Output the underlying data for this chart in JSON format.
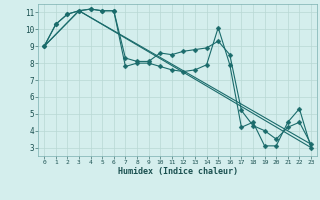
{
  "xlabel": "Humidex (Indice chaleur)",
  "bg_color": "#d4eeed",
  "grid_color": "#b8d8d4",
  "line_color": "#1a6b6b",
  "xlim": [
    -0.5,
    23.5
  ],
  "ylim": [
    2.5,
    11.5
  ],
  "yticks": [
    3,
    4,
    5,
    6,
    7,
    8,
    9,
    10,
    11
  ],
  "series1_x": [
    0,
    1,
    2,
    3,
    4,
    5,
    6,
    7,
    8,
    9,
    10,
    11,
    12,
    13,
    14,
    15,
    16,
    17,
    18,
    19,
    20,
    21,
    22,
    23
  ],
  "series1_y": [
    9.0,
    10.3,
    10.9,
    11.1,
    11.2,
    11.1,
    11.1,
    7.8,
    8.0,
    8.0,
    7.8,
    7.6,
    7.5,
    7.6,
    7.9,
    10.1,
    7.9,
    4.2,
    4.5,
    3.1,
    3.1,
    4.5,
    5.3,
    3.0
  ],
  "series2_x": [
    0,
    1,
    2,
    3,
    4,
    5,
    6,
    7,
    8,
    9,
    10,
    11,
    12,
    13,
    14,
    15,
    16,
    17,
    18,
    19,
    20,
    21,
    22,
    23
  ],
  "series2_y": [
    9.0,
    10.3,
    10.9,
    11.1,
    11.2,
    11.1,
    11.1,
    8.3,
    8.1,
    8.1,
    8.6,
    8.5,
    8.7,
    8.8,
    8.9,
    9.3,
    8.5,
    5.2,
    4.3,
    4.0,
    3.5,
    4.2,
    4.5,
    3.2
  ],
  "line1_x": [
    0,
    3,
    23
  ],
  "line1_y": [
    9.0,
    11.1,
    3.0
  ],
  "line2_x": [
    0,
    3,
    23
  ],
  "line2_y": [
    9.0,
    11.1,
    3.2
  ]
}
